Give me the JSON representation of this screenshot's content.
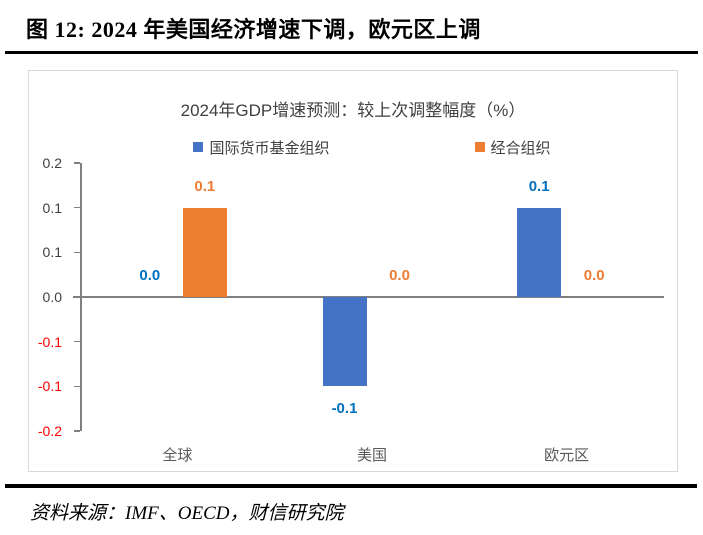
{
  "header": {
    "title": "图 12:  2024 年美国经济增速下调，欧元区上调"
  },
  "footer": {
    "source": "资料来源：IMF、OECD，财信研究院"
  },
  "chart_data": {
    "type": "bar",
    "title": "2024年GDP增速预测：较上次调整幅度（%）",
    "categories": [
      "全球",
      "美国",
      "欧元区"
    ],
    "category_ids": [
      "global",
      "us",
      "eurozone"
    ],
    "series": [
      {
        "id": "imf",
        "name": "国际货币基金组织",
        "color": "#4472C4",
        "label_color": "#0070C0",
        "values": [
          0.0,
          -0.1,
          0.1
        ]
      },
      {
        "id": "oecd",
        "name": "经合组织",
        "color": "#ED7D31",
        "label_color": "#ED7D31",
        "values": [
          0.1,
          0.0,
          0.0
        ]
      }
    ],
    "ylim": [
      -0.15,
      0.15
    ],
    "y_ticks": [
      {
        "value": 0.15,
        "label": "0.2",
        "color": "#404040"
      },
      {
        "value": 0.1,
        "label": "0.1",
        "color": "#404040"
      },
      {
        "value": 0.05,
        "label": "0.1",
        "color": "#404040"
      },
      {
        "value": 0.0,
        "label": "0.0",
        "color": "#404040"
      },
      {
        "value": -0.05,
        "label": "-0.1",
        "color": "#FF0000"
      },
      {
        "value": -0.1,
        "label": "-0.1",
        "color": "#FF0000"
      },
      {
        "value": -0.15,
        "label": "-0.2",
        "color": "#FF0000"
      }
    ],
    "legend_position": "top-center",
    "data_labels": true,
    "grid": false,
    "axis_color": "#808080"
  }
}
